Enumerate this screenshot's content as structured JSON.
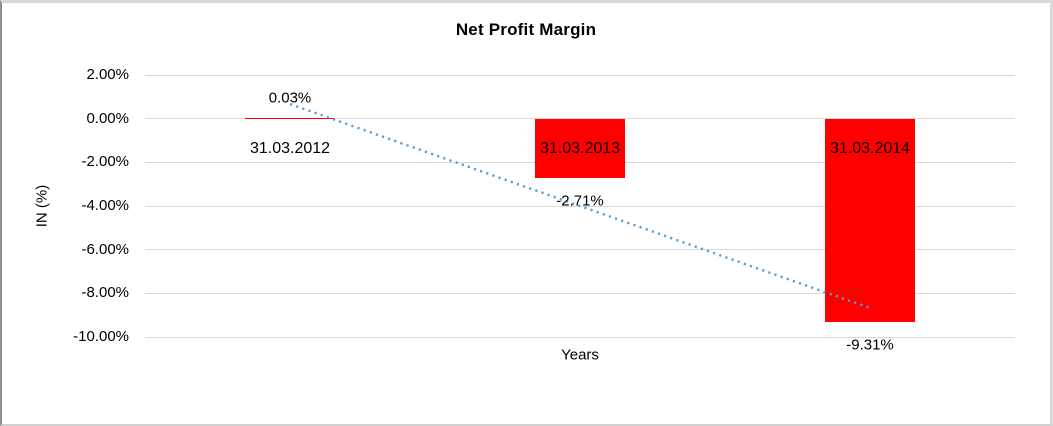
{
  "window": {
    "background": "#ffffff",
    "frame_border_color": "#d9d9d9"
  },
  "chart_data": {
    "type": "bar",
    "title": "Net Profit Margin",
    "xlabel": "Years",
    "ylabel": "IN (%)",
    "categories": [
      "31.03.2012",
      "31.03.2013",
      "31.03.2014"
    ],
    "values": [
      0.03,
      -2.71,
      -9.31
    ],
    "data_labels": [
      "0.03%",
      "-2.71%",
      "-9.31%"
    ],
    "y_ticks": [
      2,
      0,
      -2,
      -4,
      -6,
      -8,
      -10
    ],
    "y_tick_labels": [
      "2.00%",
      "0.00%",
      "-2.00%",
      "-4.00%",
      "-6.00%",
      "-8.00%",
      "-10.00%"
    ],
    "ylim": [
      -10,
      2
    ],
    "grid": true,
    "legend": false,
    "bar_color": "#ff0000",
    "gridline_color": "#d9d9d9",
    "trendline": {
      "type": "linear",
      "style": "dotted",
      "color": "#5b9bd5",
      "start_value_pct": 0.67,
      "end_value_pct": -8.67
    }
  }
}
